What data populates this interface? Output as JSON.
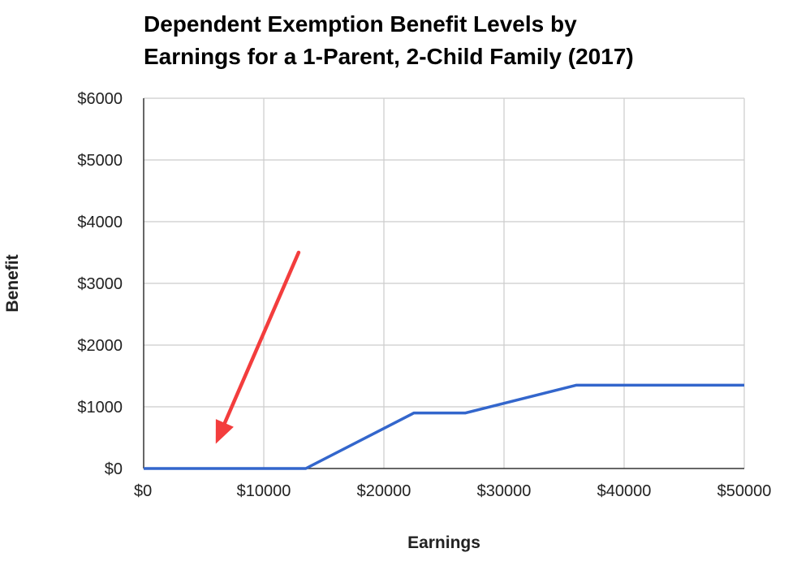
{
  "chart_data": {
    "type": "line",
    "title_lines": [
      "Dependent Exemption Benefit Levels by",
      "Earnings for a 1-Parent, 2-Child Family (2017)"
    ],
    "xlabel": "Earnings",
    "ylabel": "Benefit",
    "xlim": [
      0,
      50000
    ],
    "ylim": [
      0,
      6000
    ],
    "x_ticks": [
      0,
      10000,
      20000,
      30000,
      40000,
      50000
    ],
    "x_tick_labels": [
      "$0",
      "$10000",
      "$20000",
      "$30000",
      "$40000",
      "$50000"
    ],
    "y_ticks": [
      0,
      1000,
      2000,
      3000,
      4000,
      5000,
      6000
    ],
    "y_tick_labels": [
      "$0",
      "$1000",
      "$2000",
      "$3000",
      "$4000",
      "$5000",
      "$6000"
    ],
    "grid": true,
    "legend": "none",
    "series": [
      {
        "color": "#3366cc",
        "points": [
          [
            0,
            0
          ],
          [
            13500,
            0
          ],
          [
            22500,
            900
          ],
          [
            26800,
            900
          ],
          [
            36000,
            1350
          ],
          [
            50000,
            1350
          ]
        ]
      }
    ],
    "annotations": [
      {
        "type": "arrow",
        "color": "#f33d3d",
        "from": [
          12900,
          3500
        ],
        "to": [
          6000,
          400
        ]
      }
    ]
  }
}
